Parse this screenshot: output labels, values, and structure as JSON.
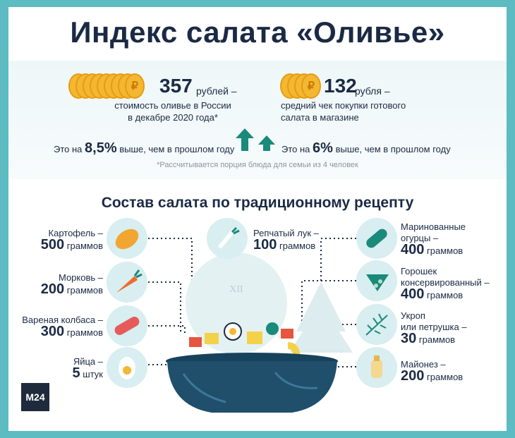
{
  "title": "Индекс салата «Оливье»",
  "left_stat": {
    "value": "357",
    "unit": "рублей –",
    "desc1": "стоимость оливье в России",
    "desc2": "в декабре 2020 года*",
    "cmp_pre": "Это на",
    "cmp_value": "8,5%",
    "cmp_post": "выше, чем в прошлом году"
  },
  "right_stat": {
    "value": "132",
    "unit": "рубля –",
    "desc1": "средний чек покупки готового",
    "desc2": "салата в магазине",
    "cmp_pre": "Это на",
    "cmp_value": "6%",
    "cmp_post": "выше, чем в прошлом году"
  },
  "coin_symbol": "₽",
  "note": "*Рассчитывается порция блюда для семьи из 4 человек",
  "section_title": "Состав салата по традиционному рецепту",
  "ingredients": {
    "potato": {
      "l1": "Картофель –",
      "q": "500",
      "u": "граммов"
    },
    "carrot": {
      "l1": "Морковь –",
      "q": "200",
      "u": "граммов"
    },
    "sausage": {
      "l1": "Вареная колбаса –",
      "q": "300",
      "u": "граммов"
    },
    "eggs": {
      "l1": "Яйца –",
      "q": "5",
      "u": "штук"
    },
    "onion": {
      "l1": "Репчатый лук –",
      "q": "100",
      "u": "граммов"
    },
    "cucumber": {
      "l1": "Маринованные",
      "l2": "огурцы –",
      "q": "400",
      "u": "граммов"
    },
    "peas": {
      "l1": "Горошек",
      "l2": "консервированный –",
      "q": "400",
      "u": "граммов"
    },
    "dill": {
      "l1": "Укроп",
      "l2": "или петрушка –",
      "q": "30",
      "u": "граммов"
    },
    "mayo": {
      "l1": "Майонез –",
      "q": "200",
      "u": "граммов"
    }
  },
  "clock_label": "XII",
  "logo": "M24",
  "colors": {
    "frame": "#5cbcc1",
    "navy": "#1b2a44",
    "coin": "#f3b731",
    "arrow": "#1a8a7a",
    "circle": "#d8eef1"
  }
}
